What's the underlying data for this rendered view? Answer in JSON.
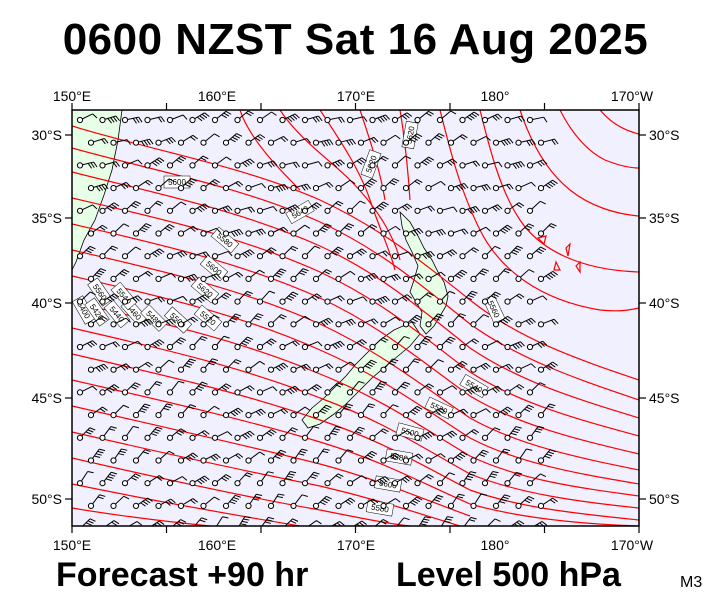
{
  "title": "0600 NZST Sat 16 Aug 2025",
  "footer": {
    "forecast": "Forecast +90 hr",
    "level": "Level 500 hPa",
    "code": "M3"
  },
  "axes": {
    "lon_labels": [
      "150°E",
      "160°E",
      "170°E",
      "180°",
      "170°W"
    ],
    "lat_labels": [
      "30°S",
      "35°S",
      "40°S",
      "45°S",
      "50°S"
    ]
  },
  "contour_labels": [
    "5620",
    "5600",
    "5620",
    "5640",
    "5580",
    "5600",
    "5620",
    "5400",
    "5420",
    "5440",
    "5460",
    "5480",
    "5500",
    "5520",
    "5560",
    "5540",
    "5520",
    "5500",
    "5580",
    "5600",
    "5580",
    "5560",
    "5540"
  ],
  "colors": {
    "contour": "#ff0000",
    "ocean": "#f0f0ff",
    "land": "#e6ffe6",
    "frame": "#000000"
  }
}
